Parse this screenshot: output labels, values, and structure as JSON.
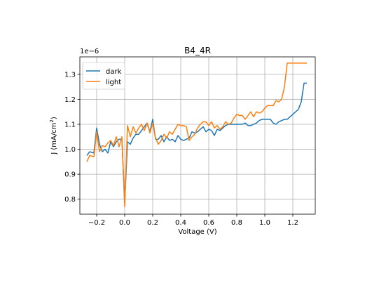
{
  "chart_data": {
    "type": "line",
    "title": "B4_4R",
    "xlabel": "Voltage (V)",
    "ylabel": "J (mA/cm²)",
    "ylabel_main": "J (mA/cm",
    "ylabel_sup": "2",
    "ylabel_tail": ")",
    "offset_text": "1e−6",
    "xlim": [
      -0.32,
      1.36
    ],
    "ylim": [
      0.74,
      1.37
    ],
    "xticks": [
      -0.2,
      0.0,
      0.2,
      0.4,
      0.6,
      0.8,
      1.0,
      1.2
    ],
    "xtick_labels": [
      "−0.2",
      "0.0",
      "0.2",
      "0.4",
      "0.6",
      "0.8",
      "1.0",
      "1.2"
    ],
    "yticks": [
      0.8,
      0.9,
      1.0,
      1.1,
      1.2,
      1.3
    ],
    "ytick_labels": [
      "0.8",
      "0.9",
      "1.0",
      "1.1",
      "1.2",
      "1.3"
    ],
    "grid": true,
    "legend_position": "top-left",
    "series": [
      {
        "name": "dark",
        "color": "#1f77b4",
        "x": [
          -0.27,
          -0.25,
          -0.22,
          -0.2,
          -0.18,
          -0.16,
          -0.14,
          -0.12,
          -0.1,
          -0.08,
          -0.06,
          -0.04,
          -0.02,
          0.0,
          0.02,
          0.04,
          0.06,
          0.08,
          0.1,
          0.12,
          0.14,
          0.16,
          0.18,
          0.2,
          0.22,
          0.24,
          0.26,
          0.28,
          0.3,
          0.32,
          0.34,
          0.36,
          0.38,
          0.4,
          0.42,
          0.44,
          0.46,
          0.48,
          0.5,
          0.52,
          0.54,
          0.56,
          0.58,
          0.6,
          0.62,
          0.64,
          0.66,
          0.68,
          0.7,
          0.72,
          0.74,
          0.76,
          0.78,
          0.8,
          0.82,
          0.84,
          0.86,
          0.88,
          0.9,
          0.92,
          0.94,
          0.96,
          0.98,
          1.0,
          1.02,
          1.04,
          1.06,
          1.08,
          1.1,
          1.12,
          1.14,
          1.16,
          1.18,
          1.2,
          1.22,
          1.24,
          1.26,
          1.28,
          1.3
        ],
        "y": [
          0.975,
          0.99,
          0.985,
          1.085,
          1.02,
          0.99,
          1.0,
          0.985,
          1.03,
          1.01,
          1.03,
          1.04,
          1.04,
          0.785,
          1.03,
          1.02,
          1.045,
          1.06,
          1.06,
          1.075,
          1.09,
          1.105,
          1.07,
          1.12,
          1.04,
          1.04,
          1.055,
          1.03,
          1.05,
          1.035,
          1.04,
          1.03,
          1.055,
          1.04,
          1.035,
          1.04,
          1.045,
          1.07,
          1.065,
          1.07,
          1.08,
          1.09,
          1.07,
          1.08,
          1.075,
          1.055,
          1.08,
          1.075,
          1.085,
          1.095,
          1.1,
          1.1,
          1.1,
          1.1,
          1.1,
          1.1,
          1.105,
          1.095,
          1.095,
          1.1,
          1.105,
          1.115,
          1.12,
          1.12,
          1.12,
          1.12,
          1.105,
          1.1,
          1.11,
          1.115,
          1.12,
          1.12,
          1.13,
          1.14,
          1.15,
          1.16,
          1.19,
          1.265,
          1.265
        ]
      },
      {
        "name": "light",
        "color": "#ff7f0e",
        "x": [
          -0.27,
          -0.25,
          -0.22,
          -0.2,
          -0.18,
          -0.16,
          -0.14,
          -0.12,
          -0.1,
          -0.08,
          -0.06,
          -0.04,
          -0.02,
          0.0,
          0.02,
          0.04,
          0.06,
          0.08,
          0.1,
          0.12,
          0.14,
          0.16,
          0.18,
          0.2,
          0.22,
          0.24,
          0.26,
          0.28,
          0.3,
          0.32,
          0.34,
          0.36,
          0.38,
          0.4,
          0.42,
          0.44,
          0.46,
          0.48,
          0.5,
          0.52,
          0.54,
          0.56,
          0.58,
          0.6,
          0.62,
          0.64,
          0.66,
          0.68,
          0.7,
          0.72,
          0.74,
          0.76,
          0.78,
          0.8,
          0.82,
          0.84,
          0.86,
          0.88,
          0.9,
          0.92,
          0.94,
          0.96,
          0.98,
          1.0,
          1.02,
          1.04,
          1.06,
          1.08,
          1.1,
          1.12,
          1.14,
          1.16,
          1.18,
          1.2,
          1.22,
          1.24,
          1.26,
          1.28,
          1.3
        ],
        "y": [
          0.95,
          0.975,
          0.97,
          1.07,
          0.99,
          1.015,
          1.01,
          1.025,
          1.035,
          1.015,
          1.05,
          1.01,
          1.05,
          0.77,
          1.095,
          1.05,
          1.09,
          1.065,
          1.085,
          1.1,
          1.075,
          1.105,
          1.065,
          1.105,
          1.045,
          1.02,
          1.035,
          1.06,
          1.045,
          1.07,
          1.06,
          1.08,
          1.1,
          1.095,
          1.095,
          1.09,
          1.035,
          1.05,
          1.06,
          1.085,
          1.1,
          1.11,
          1.11,
          1.095,
          1.11,
          1.085,
          1.095,
          1.08,
          1.09,
          1.11,
          1.1,
          1.105,
          1.125,
          1.14,
          1.135,
          1.135,
          1.12,
          1.135,
          1.15,
          1.13,
          1.15,
          1.145,
          1.15,
          1.165,
          1.175,
          1.175,
          1.175,
          1.195,
          1.19,
          1.2,
          1.25,
          1.345,
          1.345,
          1.345,
          1.345,
          1.345,
          1.345,
          1.345,
          1.345
        ]
      }
    ]
  }
}
